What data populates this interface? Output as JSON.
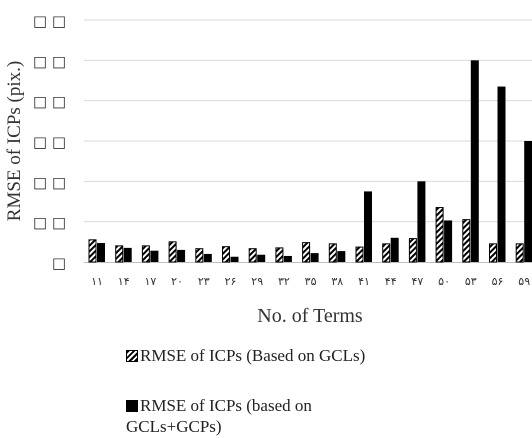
{
  "chart_data": {
    "type": "bar",
    "xlabel": "No. of Terms",
    "ylabel": "RMSE of ICPs (pix.)",
    "y_tick_labels": [
      "□",
      "□ □",
      "□ □",
      "□ □",
      "□ □",
      "□ □",
      "□ □"
    ],
    "ylim": [
      0,
      6
    ],
    "grid": true,
    "legend_position": "bottom",
    "categories": [
      "۱۱",
      "۱۴",
      "۱۷",
      "۲۰",
      "۲۳",
      "۲۶",
      "۲۹",
      "۳۲",
      "۳۵",
      "۳۸",
      "۴۱",
      "۴۴",
      "۴۷",
      "۵۰",
      "۵۳",
      "۵۶",
      "۵۹"
    ],
    "series": [
      {
        "name": "RMSE of ICPs (Based on GCLs)",
        "pattern": "hatched",
        "color": "#000000",
        "values": [
          0.55,
          0.4,
          0.4,
          0.5,
          0.33,
          0.38,
          0.33,
          0.35,
          0.48,
          0.45,
          0.37,
          0.45,
          0.58,
          1.35,
          1.05,
          0.45,
          0.45
        ]
      },
      {
        "name": "RMSE of ICPs (based on GCLs+GCPs)",
        "pattern": "solid",
        "color": "#000000",
        "values": [
          0.47,
          0.35,
          0.28,
          0.3,
          0.2,
          0.13,
          0.18,
          0.15,
          0.22,
          0.27,
          1.75,
          0.6,
          2.0,
          1.03,
          5.0,
          4.35,
          3.0
        ]
      }
    ]
  }
}
